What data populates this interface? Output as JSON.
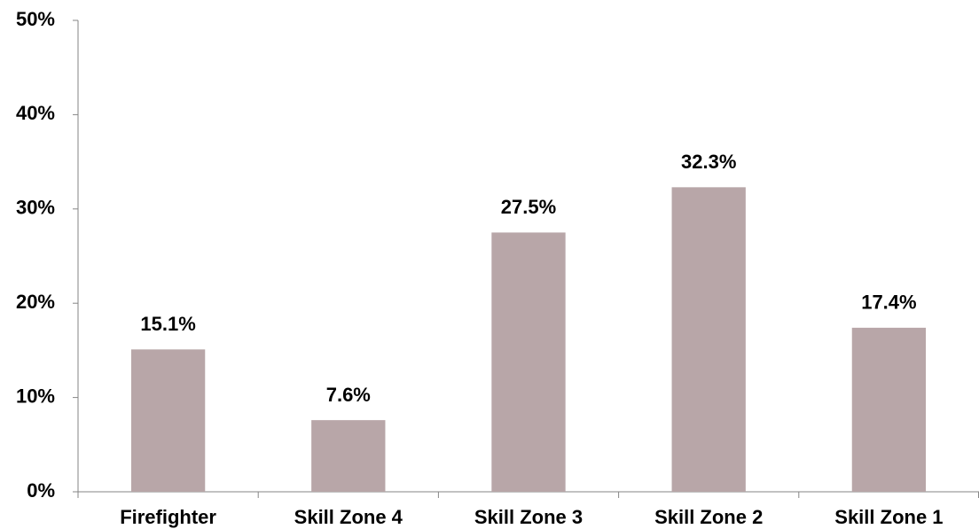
{
  "chart_data": {
    "type": "bar",
    "categories": [
      "Firefighter",
      "Skill Zone 4",
      "Skill Zone 3",
      "Skill Zone 2",
      "Skill Zone 1"
    ],
    "values": [
      15.1,
      7.6,
      27.5,
      32.3,
      17.4
    ],
    "value_labels": [
      "15.1%",
      "7.6%",
      "27.5%",
      "32.3%",
      "17.4%"
    ],
    "color": "#b8a6a8",
    "ylim": [
      0,
      50
    ],
    "yticks": [
      {
        "value": 0,
        "label": "0%"
      },
      {
        "value": 10,
        "label": "10%"
      },
      {
        "value": 20,
        "label": "20%"
      },
      {
        "value": 30,
        "label": "30%"
      },
      {
        "value": 40,
        "label": "40%"
      },
      {
        "value": 50,
        "label": "50%"
      }
    ],
    "grid": false
  }
}
